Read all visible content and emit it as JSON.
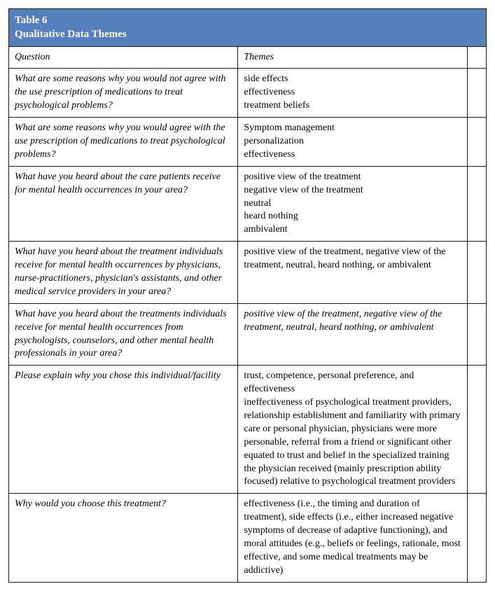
{
  "title": {
    "line1": "Table 6",
    "line2": "Qualitative Data Themes"
  },
  "columns": {
    "question": "Question",
    "themes": "Themes"
  },
  "rows": [
    {
      "question": "What are some reasons why you would not agree with the use prescription of medications to treat psychological problems?",
      "themes": "side effects\neffectiveness\ntreatment beliefs",
      "themes_italic": false
    },
    {
      "question": "What are some reasons why you would agree with the use prescription of medications to treat psychological problems?",
      "themes": "Symptom management\npersonalization\neffectiveness",
      "themes_italic": false
    },
    {
      "question": "What have you heard about the care patients receive for mental health occurrences in your area?",
      "themes": "positive view of the treatment\nnegative view of the treatment\nneutral\nheard nothing\nambivalent",
      "themes_italic": false
    },
    {
      "question": "What have you heard about the treatment individuals receive for mental health occurrences by physicians, nurse-practitioners, physician's assistants, and other medical service providers in your area?",
      "themes": "positive view of the treatment, negative view of the treatment, neutral, heard nothing, or ambivalent",
      "themes_italic": false
    },
    {
      "question": "What have you heard about the treatments individuals receive for mental health occurrences from psychologists, counselors, and other mental health professionals in your area?",
      "themes": "positive view of the treatment, negative view of the treatment, neutral, heard nothing, or ambivalent",
      "themes_italic": true
    },
    {
      "question": "Please explain why you chose this individual/facility",
      "themes": "trust, competence, personal preference, and effectiveness\nineffectiveness of psychological treatment providers, relationship establishment and familiarity with primary care or personal physician, physicians were more personable, referral from a friend or significant other equated to trust and belief in the specialized training the physician received (mainly prescription ability focused) relative to psychological treatment providers",
      "themes_italic": false
    },
    {
      "question": "Why would you choose this treatment?",
      "themes": "effectiveness (i.e., the timing and duration of treatment), side effects (i.e., either increased negative symptoms of decrease of adaptive functioning), and moral attitudes (e.g., beliefs or feelings, rationale, most effective, and some medical treatments may be addictive)",
      "themes_italic": false
    }
  ],
  "style": {
    "header_bg": "#5580bc",
    "header_text": "#ffffff",
    "border_color": "#1a1a1a",
    "body_text": "#000000",
    "font_family": "Times New Roman",
    "font_size_pt": 11
  }
}
